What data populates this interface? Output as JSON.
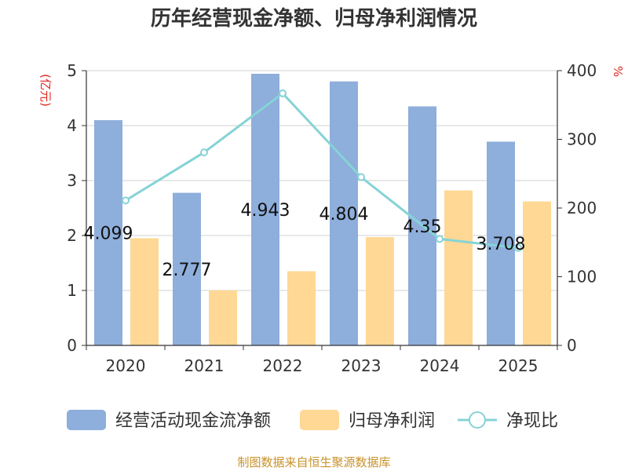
{
  "chart_data": {
    "type": "bar",
    "title": "历年经营现金净额、归母净利润情况",
    "categories": [
      "2020",
      "2021",
      "2022",
      "2023",
      "2024",
      "2025"
    ],
    "series": [
      {
        "name": "经营活动现金流净额",
        "type": "bar",
        "axis": "left",
        "color": "#8eaedb",
        "values": [
          4.099,
          2.777,
          4.943,
          4.804,
          4.35,
          3.708
        ],
        "labels": [
          "4.099",
          "2.777",
          "4.943",
          "4.804",
          "4.35",
          "3.708"
        ]
      },
      {
        "name": "归母净利润",
        "type": "bar",
        "axis": "left",
        "color": "#fed894",
        "values": [
          1.95,
          1.0,
          1.35,
          1.97,
          2.82,
          2.62
        ]
      },
      {
        "name": "净现比",
        "type": "line",
        "axis": "right",
        "color": "#86d3d6",
        "values": [
          211,
          281,
          367,
          245,
          155,
          142
        ]
      }
    ],
    "left_axis": {
      "unit": "(亿元)",
      "ylim": [
        0,
        5
      ],
      "ticks": [
        "0",
        "1",
        "2",
        "3",
        "4",
        "5"
      ]
    },
    "right_axis": {
      "unit": "%",
      "ylim": [
        0,
        400
      ],
      "ticks": [
        "0",
        "100",
        "200",
        "300",
        "400"
      ]
    },
    "grid": true,
    "legend_position": "bottom"
  },
  "source": "制图数据来自恒生聚源数据库"
}
